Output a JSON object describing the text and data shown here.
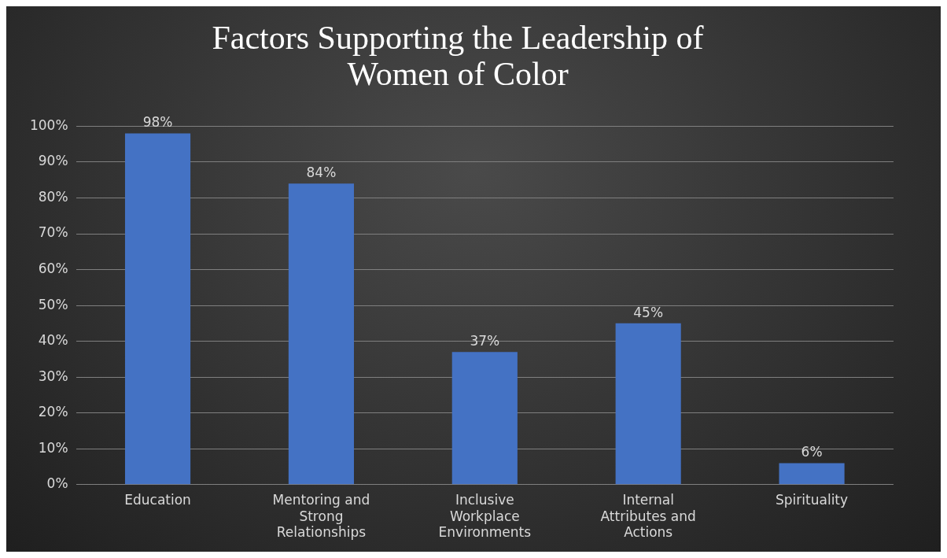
{
  "chart_data": {
    "type": "bar",
    "title": "Factors Supporting the Leadership of Women of Color",
    "categories": [
      "Education",
      "Mentoring and Strong Relationships",
      "Inclusive Workplace Environments",
      "Internal Attributes and Actions",
      "Spirituality"
    ],
    "values": [
      98,
      84,
      37,
      45,
      6
    ],
    "value_labels": [
      "98%",
      "84%",
      "37%",
      "45%",
      "6%"
    ],
    "color": "#4472c4",
    "ylim": [
      0,
      100
    ],
    "yticks": [
      {
        "value": 0,
        "label": "0%"
      },
      {
        "value": 10,
        "label": "10%"
      },
      {
        "value": 20,
        "label": "20%"
      },
      {
        "value": 30,
        "label": "30%"
      },
      {
        "value": 40,
        "label": "40%"
      },
      {
        "value": 50,
        "label": "50%"
      },
      {
        "value": 60,
        "label": "60%"
      },
      {
        "value": 70,
        "label": "70%"
      },
      {
        "value": 80,
        "label": "80%"
      },
      {
        "value": 90,
        "label": "90%"
      },
      {
        "value": 100,
        "label": "100%"
      }
    ],
    "grid": "y",
    "legend": false
  }
}
